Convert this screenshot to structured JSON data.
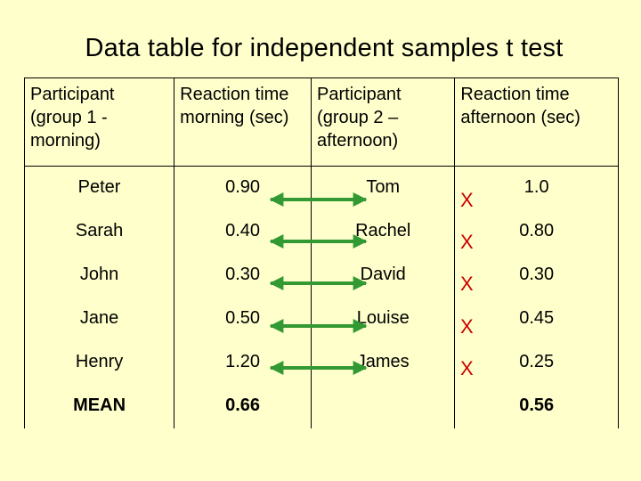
{
  "title": "Data table for independent samples t test",
  "headers": [
    "Participant (group 1 - morning)",
    "Reaction time morning (sec)",
    "Participant (group 2 – afternoon)",
    "Reaction time afternoon (sec)"
  ],
  "rows": [
    {
      "p1": "Peter",
      "t1": "0.90",
      "p2": "Tom",
      "t2": "1.0"
    },
    {
      "p1": "Sarah",
      "t1": "0.40",
      "p2": "Rachel",
      "t2": "0.80"
    },
    {
      "p1": "John",
      "t1": "0.30",
      "p2": "David",
      "t2": "0.30"
    },
    {
      "p1": "Jane",
      "t1": "0.50",
      "p2": "Louise",
      "t2": "0.45"
    },
    {
      "p1": "Henry",
      "t1": "1.20",
      "p2": "James",
      "t2": "0.25"
    }
  ],
  "mean": {
    "label": "MEAN",
    "t1": "0.66",
    "t2": "0.56"
  },
  "cross_mark": "X",
  "colors": {
    "background": "#ffffcc",
    "arrow": "#339933",
    "cross": "#cc0000"
  }
}
